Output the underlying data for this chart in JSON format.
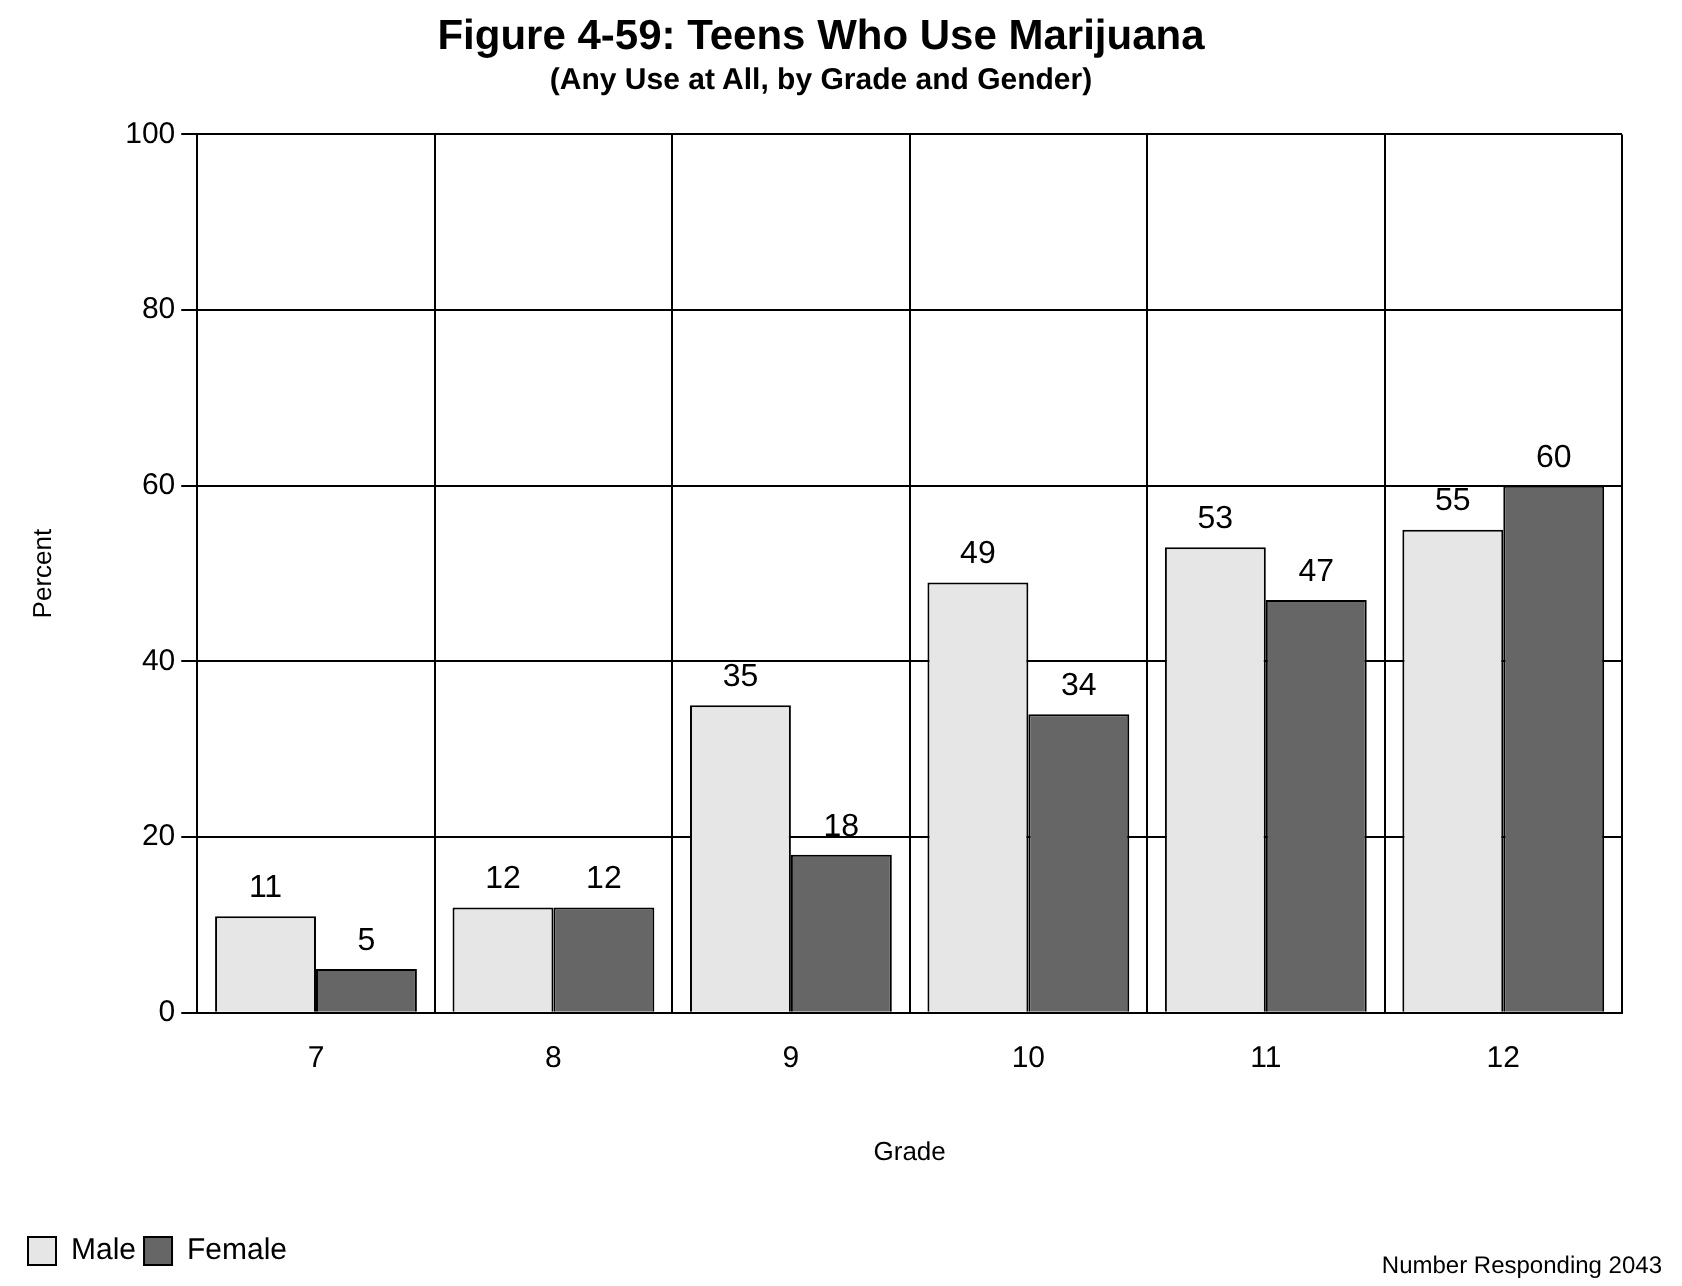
{
  "chart_data": {
    "type": "bar",
    "title": "Figure 4-59: Teens Who Use Marijuana",
    "subtitle": "(Any Use at All, by Grade and Gender)",
    "xlabel": "Grade",
    "ylabel": "Percent",
    "categories": [
      "7",
      "8",
      "9",
      "10",
      "11",
      "12"
    ],
    "series": [
      {
        "name": "Male",
        "color": "#e6e6e6",
        "values": [
          11,
          12,
          35,
          49,
          53,
          55
        ]
      },
      {
        "name": "Female",
        "color": "#666666",
        "values": [
          5,
          12,
          18,
          34,
          47,
          60
        ]
      }
    ],
    "ylim": [
      0,
      100
    ],
    "yticks": [
      0,
      20,
      40,
      60,
      80,
      100
    ],
    "grid": true,
    "legend": "bottom left",
    "data_labels": true,
    "annotations": [
      "Number Responding 2043"
    ]
  }
}
